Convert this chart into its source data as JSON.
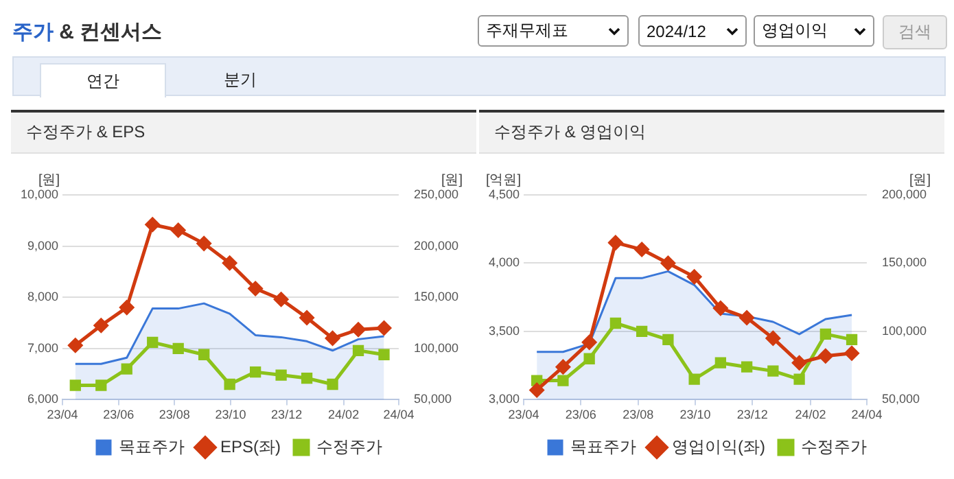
{
  "chart_data": [
    {
      "type": "other",
      "title": "주가 & 컨센서스",
      "annotations": [
        "주재무제표",
        "2024/12",
        "영업이익",
        "검색",
        "연간",
        "분기"
      ]
    },
    {
      "type": "line",
      "title": "수정주가 & EPS",
      "ylabel": "[원]",
      "y2label": "[원]",
      "x": [
        "2023-04-15",
        "2023-05-13",
        "2023-06-10",
        "2023-07-08",
        "2023-08-05",
        "2023-09-02",
        "2023-09-30",
        "2023-10-28",
        "2023-11-25",
        "2023-12-23",
        "2024-01-20",
        "2024-02-17",
        "2024-03-16"
      ],
      "xlim": [
        "2023-04",
        "2024-04"
      ],
      "xticks": [
        {
          "value": "2023-04",
          "label": "23/04"
        },
        {
          "value": "2023-06",
          "label": "23/06"
        },
        {
          "value": "2023-08",
          "label": "23/08"
        },
        {
          "value": "2023-10",
          "label": "23/10"
        },
        {
          "value": "2023-12",
          "label": "23/12"
        },
        {
          "value": "2024-02",
          "label": "24/02"
        },
        {
          "value": "2024-04",
          "label": "24/04"
        }
      ],
      "ylim": [
        6000,
        10000
      ],
      "yticks": [
        {
          "value": 6000,
          "label": "6,000"
        },
        {
          "value": 7000,
          "label": "7,000"
        },
        {
          "value": 8000,
          "label": "8,000"
        },
        {
          "value": 9000,
          "label": "9,000"
        },
        {
          "value": 10000,
          "label": "10,000"
        }
      ],
      "y2lim": [
        50000,
        250000
      ],
      "y2ticks": [
        {
          "value": 50000,
          "label": "50,000"
        },
        {
          "value": 100000,
          "label": "100,000"
        },
        {
          "value": 150000,
          "label": "150,000"
        },
        {
          "value": 200000,
          "label": "200,000"
        },
        {
          "value": 250000,
          "label": "250,000"
        }
      ],
      "grid": "y",
      "legend": "bottom",
      "series": [
        {
          "name": "목표주가",
          "type": "area",
          "color": "#3a77d8",
          "axis": "y2",
          "marker": "none",
          "values": [
            85000,
            85000,
            91000,
            139000,
            139000,
            144000,
            134000,
            113000,
            111000,
            107000,
            98000,
            109000,
            112000
          ]
        },
        {
          "name": "EPS(좌)",
          "type": "line",
          "color": "#d13a0f",
          "marker": "diamond",
          "values": [
            7060,
            7450,
            7800,
            9420,
            9310,
            9050,
            8670,
            8170,
            7960,
            7600,
            7200,
            7370,
            7400
          ]
        },
        {
          "name": "수정주가",
          "type": "line",
          "color": "#8cc21a",
          "axis": "y2",
          "marker": "square",
          "values": [
            64000,
            64000,
            80000,
            106000,
            100000,
            94000,
            65000,
            77000,
            74000,
            71000,
            65000,
            98000,
            94000
          ]
        }
      ]
    },
    {
      "type": "line",
      "title": "수정주가 & 영업이익",
      "ylabel": "[억원]",
      "y2label": "[원]",
      "x": [
        "2023-04-15",
        "2023-05-13",
        "2023-06-10",
        "2023-07-08",
        "2023-08-05",
        "2023-09-02",
        "2023-09-30",
        "2023-10-28",
        "2023-11-25",
        "2023-12-23",
        "2024-01-20",
        "2024-02-17",
        "2024-03-16"
      ],
      "xlim": [
        "2023-04",
        "2024-04"
      ],
      "xticks": [
        {
          "value": "2023-04",
          "label": "23/04"
        },
        {
          "value": "2023-06",
          "label": "23/06"
        },
        {
          "value": "2023-08",
          "label": "23/08"
        },
        {
          "value": "2023-10",
          "label": "23/10"
        },
        {
          "value": "2023-12",
          "label": "23/12"
        },
        {
          "value": "2024-02",
          "label": "24/02"
        },
        {
          "value": "2024-04",
          "label": "24/04"
        }
      ],
      "ylim": [
        3000,
        4500
      ],
      "yticks": [
        {
          "value": 3000,
          "label": "3,000"
        },
        {
          "value": 3500,
          "label": "3,500"
        },
        {
          "value": 4000,
          "label": "4,000"
        },
        {
          "value": 4500,
          "label": "4,500"
        }
      ],
      "y2lim": [
        50000,
        200000
      ],
      "y2ticks": [
        {
          "value": 50000,
          "label": "50,000"
        },
        {
          "value": 100000,
          "label": "100,000"
        },
        {
          "value": 150000,
          "label": "150,000"
        },
        {
          "value": 200000,
          "label": "200,000"
        }
      ],
      "grid": "y",
      "legend": "bottom",
      "series": [
        {
          "name": "목표주가",
          "type": "area",
          "color": "#3a77d8",
          "axis": "y2",
          "marker": "none",
          "values": [
            85000,
            85000,
            91000,
            139000,
            139000,
            144000,
            134000,
            113000,
            111000,
            107000,
            98000,
            109000,
            112000
          ]
        },
        {
          "name": "영업이익(좌)",
          "type": "line",
          "color": "#d13a0f",
          "marker": "diamond",
          "values": [
            3070,
            3240,
            3420,
            4150,
            4100,
            4000,
            3900,
            3670,
            3600,
            3450,
            3270,
            3320,
            3340
          ]
        },
        {
          "name": "수정주가",
          "type": "line",
          "color": "#8cc21a",
          "axis": "y2",
          "marker": "square",
          "values": [
            64000,
            64000,
            80000,
            106000,
            100000,
            94000,
            65000,
            77000,
            74000,
            71000,
            65000,
            98000,
            94000
          ]
        }
      ]
    }
  ]
}
